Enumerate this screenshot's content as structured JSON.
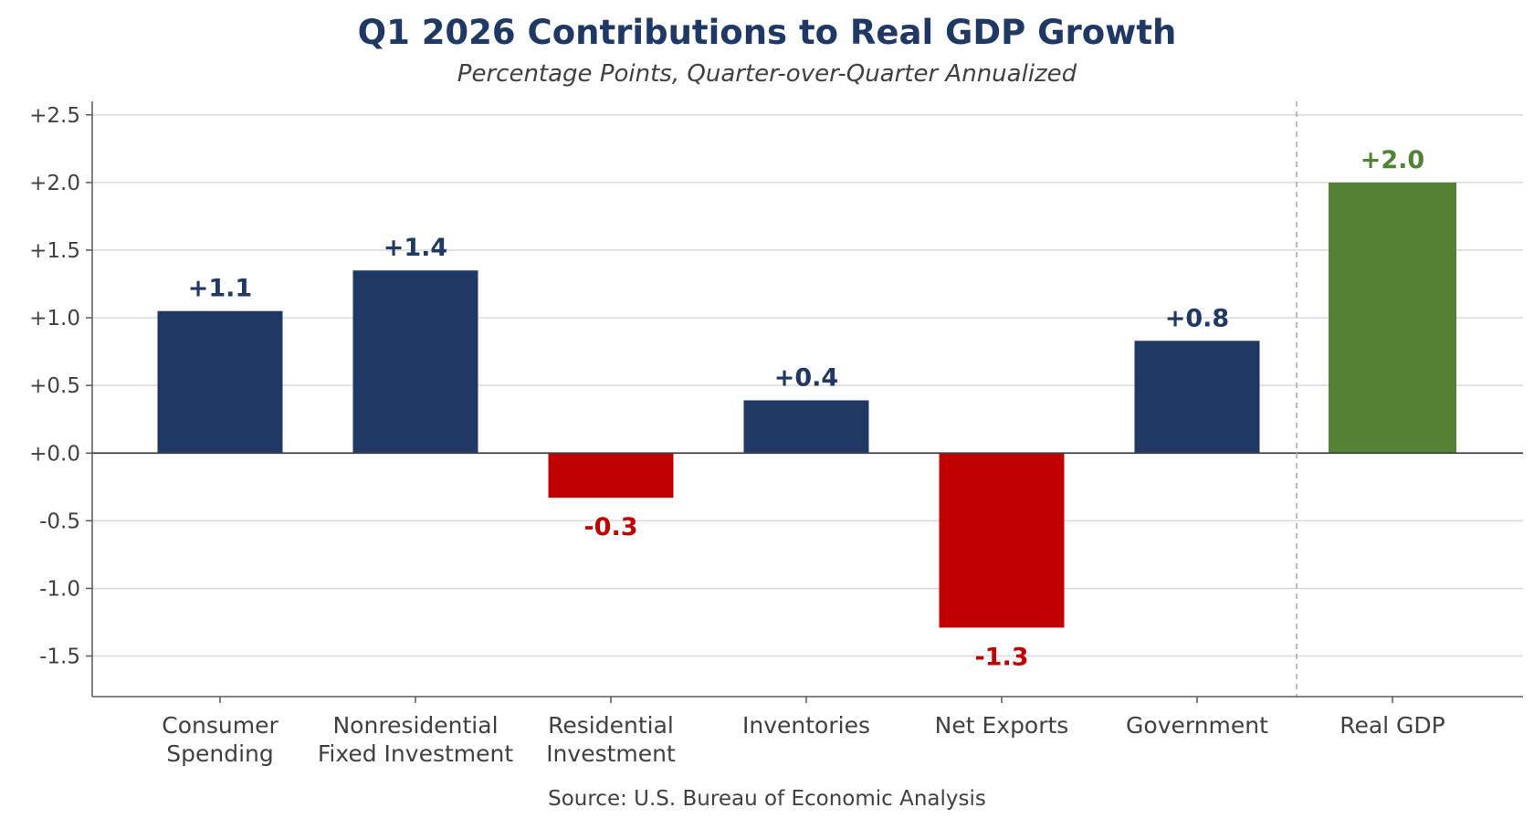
{
  "chart_data": {
    "type": "bar",
    "title": "Q1 2026 Contributions to Real GDP Growth",
    "subtitle": "Percentage Points, Quarter-over-Quarter Annualized",
    "source": "Source: U.S. Bureau of Economic Analysis",
    "ylim": [
      -1.8,
      2.6
    ],
    "yticks": [
      2.5,
      2.0,
      1.5,
      1.0,
      0.5,
      0.0,
      -0.5,
      -1.0,
      -1.5
    ],
    "ytick_labels": [
      "+2.5",
      "+2.0",
      "+1.5",
      "+1.0",
      "+0.5",
      "+0.0",
      "-0.5",
      "-1.0",
      "-1.5"
    ],
    "grid": true,
    "categories": [
      [
        "Consumer",
        "Spending"
      ],
      [
        "Nonresidential",
        "Fixed Investment"
      ],
      [
        "Residential",
        "Investment"
      ],
      [
        "Inventories"
      ],
      [
        "Net Exports"
      ],
      [
        "Government"
      ],
      [
        "Real GDP"
      ]
    ],
    "values": [
      1.05,
      1.35,
      -0.33,
      0.39,
      -1.29,
      0.83,
      2.0
    ],
    "data_labels": [
      "+1.1",
      "+1.4",
      "-0.3",
      "+0.4",
      "-1.3",
      "+0.8",
      "+2.0"
    ],
    "total_index": 6,
    "colors": {
      "positive": "#203864",
      "negative": "#c00000",
      "total": "#548235",
      "title": "#203864",
      "text": "#404040"
    }
  }
}
